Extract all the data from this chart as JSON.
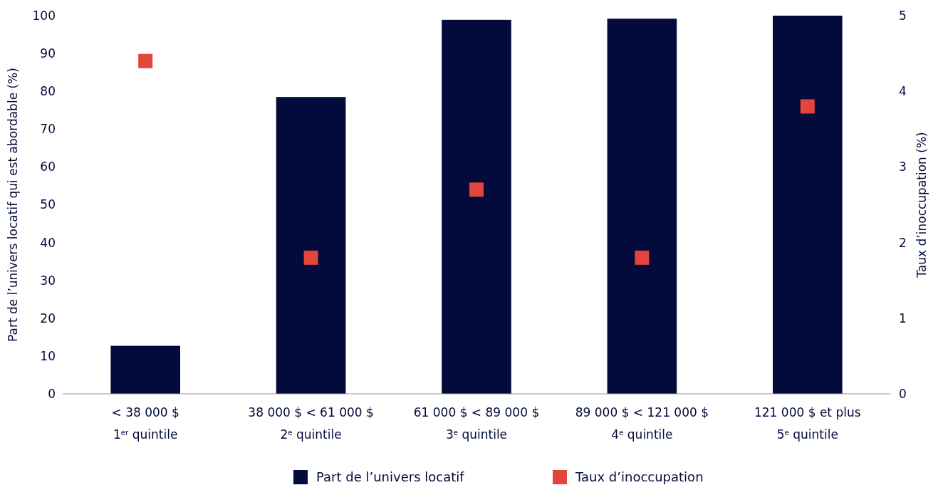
{
  "chart_data": {
    "type": "bar",
    "categories": [
      "< 38 000 $\n1$^{er}$ quintile",
      "38 000 $ < 61 000 $\n2$^{e}$ quintile",
      "61 000 $ < 89 000 $\n3$^{e}$ quintile",
      "89 000 $ < 121 000 $\n4$^{e}$ quintile",
      "121 000 $ et plus\n5$^{e}$ quintile"
    ],
    "ylabel": "Part de l’univers locatif qui est abordable (%)",
    "y2label": "Taux d’inoccupation (%)",
    "ylim": [
      0,
      100
    ],
    "yticks": [
      0,
      10,
      20,
      30,
      40,
      50,
      60,
      70,
      80,
      90,
      100
    ],
    "y2lim": [
      0,
      5
    ],
    "y2ticks": [
      0,
      1,
      2,
      3,
      4,
      5
    ],
    "legend": "bottom",
    "marker": "square",
    "series": [
      {
        "name": "Part de l’univers locatif",
        "color": "#020b3b",
        "values": [
          12.7,
          78.5,
          98.9,
          99.2,
          100
        ]
      },
      {
        "name": "Taux d’inoccupation",
        "type": "scatter",
        "axis": "y2",
        "color": "#e2453c",
        "values": [
          4.4,
          1.8,
          2.7,
          1.8,
          3.8
        ]
      }
    ]
  }
}
